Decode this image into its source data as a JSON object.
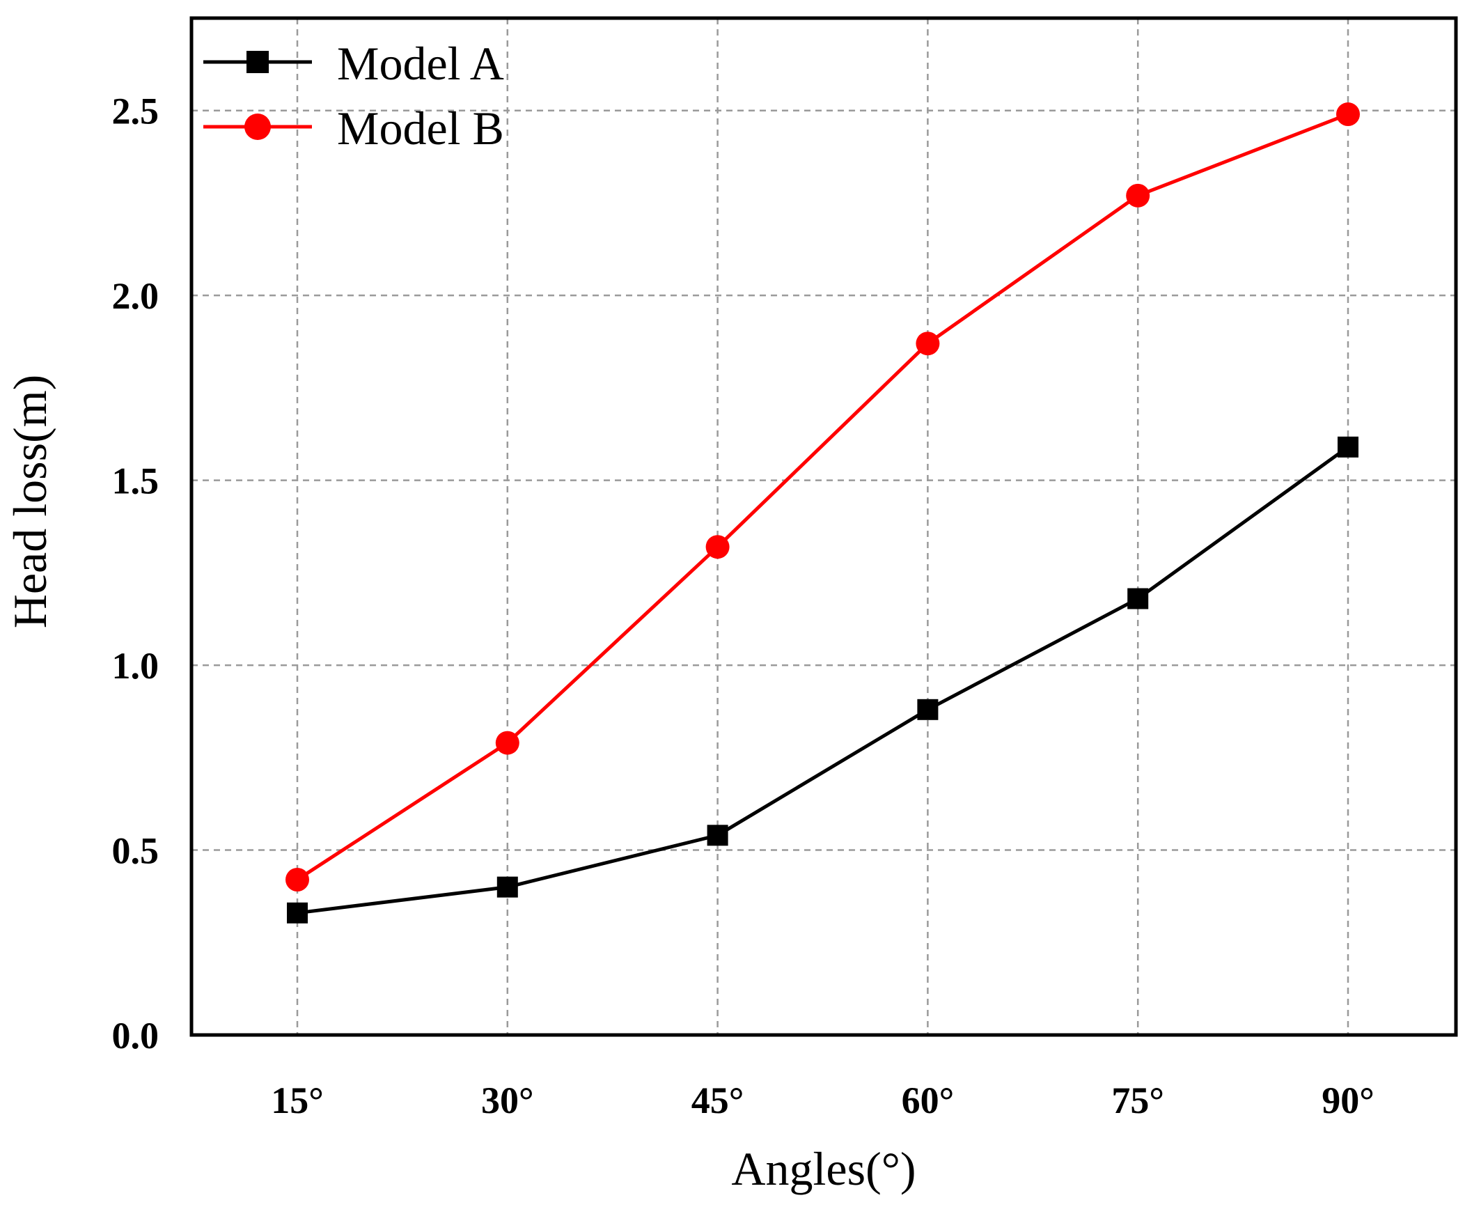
{
  "chart_data": {
    "type": "line",
    "title": "",
    "xlabel": "Angles(°)",
    "ylabel": "Head loss(m)",
    "categories": [
      "15°",
      "30°",
      "45°",
      "60°",
      "75°",
      "90°"
    ],
    "ylim": [
      0,
      2.75
    ],
    "yticks": [
      "0.0",
      "0.5",
      "1.0",
      "1.5",
      "2.0",
      "2.5"
    ],
    "ytick_values": [
      0,
      0.5,
      1.0,
      1.5,
      2.0,
      2.5
    ],
    "grid": true,
    "legend_position": "top-left",
    "series": [
      {
        "name": "Model A",
        "color": "#000000",
        "marker": "square",
        "values": [
          0.33,
          0.4,
          0.54,
          0.88,
          1.18,
          1.59
        ]
      },
      {
        "name": "Model B",
        "color": "#ff0000",
        "marker": "circle",
        "values": [
          0.42,
          0.79,
          1.32,
          1.87,
          2.27,
          2.49
        ]
      }
    ]
  }
}
